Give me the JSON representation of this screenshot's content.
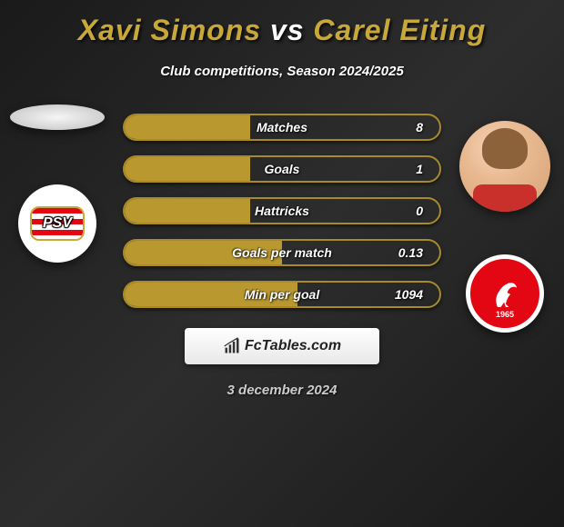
{
  "title": {
    "player1": "Xavi Simons",
    "vs": "vs",
    "player2": "Carel Eiting",
    "player1_color": "#c9a83a",
    "vs_color": "#ffffff",
    "player2_color": "#c9a83a",
    "fontsize": 32
  },
  "subtitle": "Club competitions, Season 2024/2025",
  "colors": {
    "bar_border": "#a88a2a",
    "bar_fill": "#b8982f",
    "bar_empty": "rgba(0,0,0,0)",
    "text": "#ffffff",
    "background_dark": "#1a1a1a",
    "background_light": "#2d2d2d"
  },
  "player_left": {
    "name": "Xavi Simons",
    "club_short": "PSV",
    "club_colors": {
      "primary": "#e30613",
      "secondary": "#ffffff",
      "accent": "#c9a83a"
    }
  },
  "player_right": {
    "name": "Carel Eiting",
    "club_short": "FC Twente",
    "club_year": "1965",
    "club_colors": {
      "primary": "#e30613",
      "secondary": "#ffffff"
    }
  },
  "stats": [
    {
      "label": "Matches",
      "value": "8",
      "fill_pct": 40
    },
    {
      "label": "Goals",
      "value": "1",
      "fill_pct": 40
    },
    {
      "label": "Hattricks",
      "value": "0",
      "fill_pct": 40
    },
    {
      "label": "Goals per match",
      "value": "0.13",
      "fill_pct": 50
    },
    {
      "label": "Min per goal",
      "value": "1094",
      "fill_pct": 55
    }
  ],
  "stat_bar": {
    "height": 30,
    "border_radius": 15,
    "border_width": 2,
    "gap": 16,
    "label_fontsize": 14
  },
  "branding": {
    "text": "FcTables.com",
    "icon": "chart-bars-icon"
  },
  "date": "3 december 2024"
}
